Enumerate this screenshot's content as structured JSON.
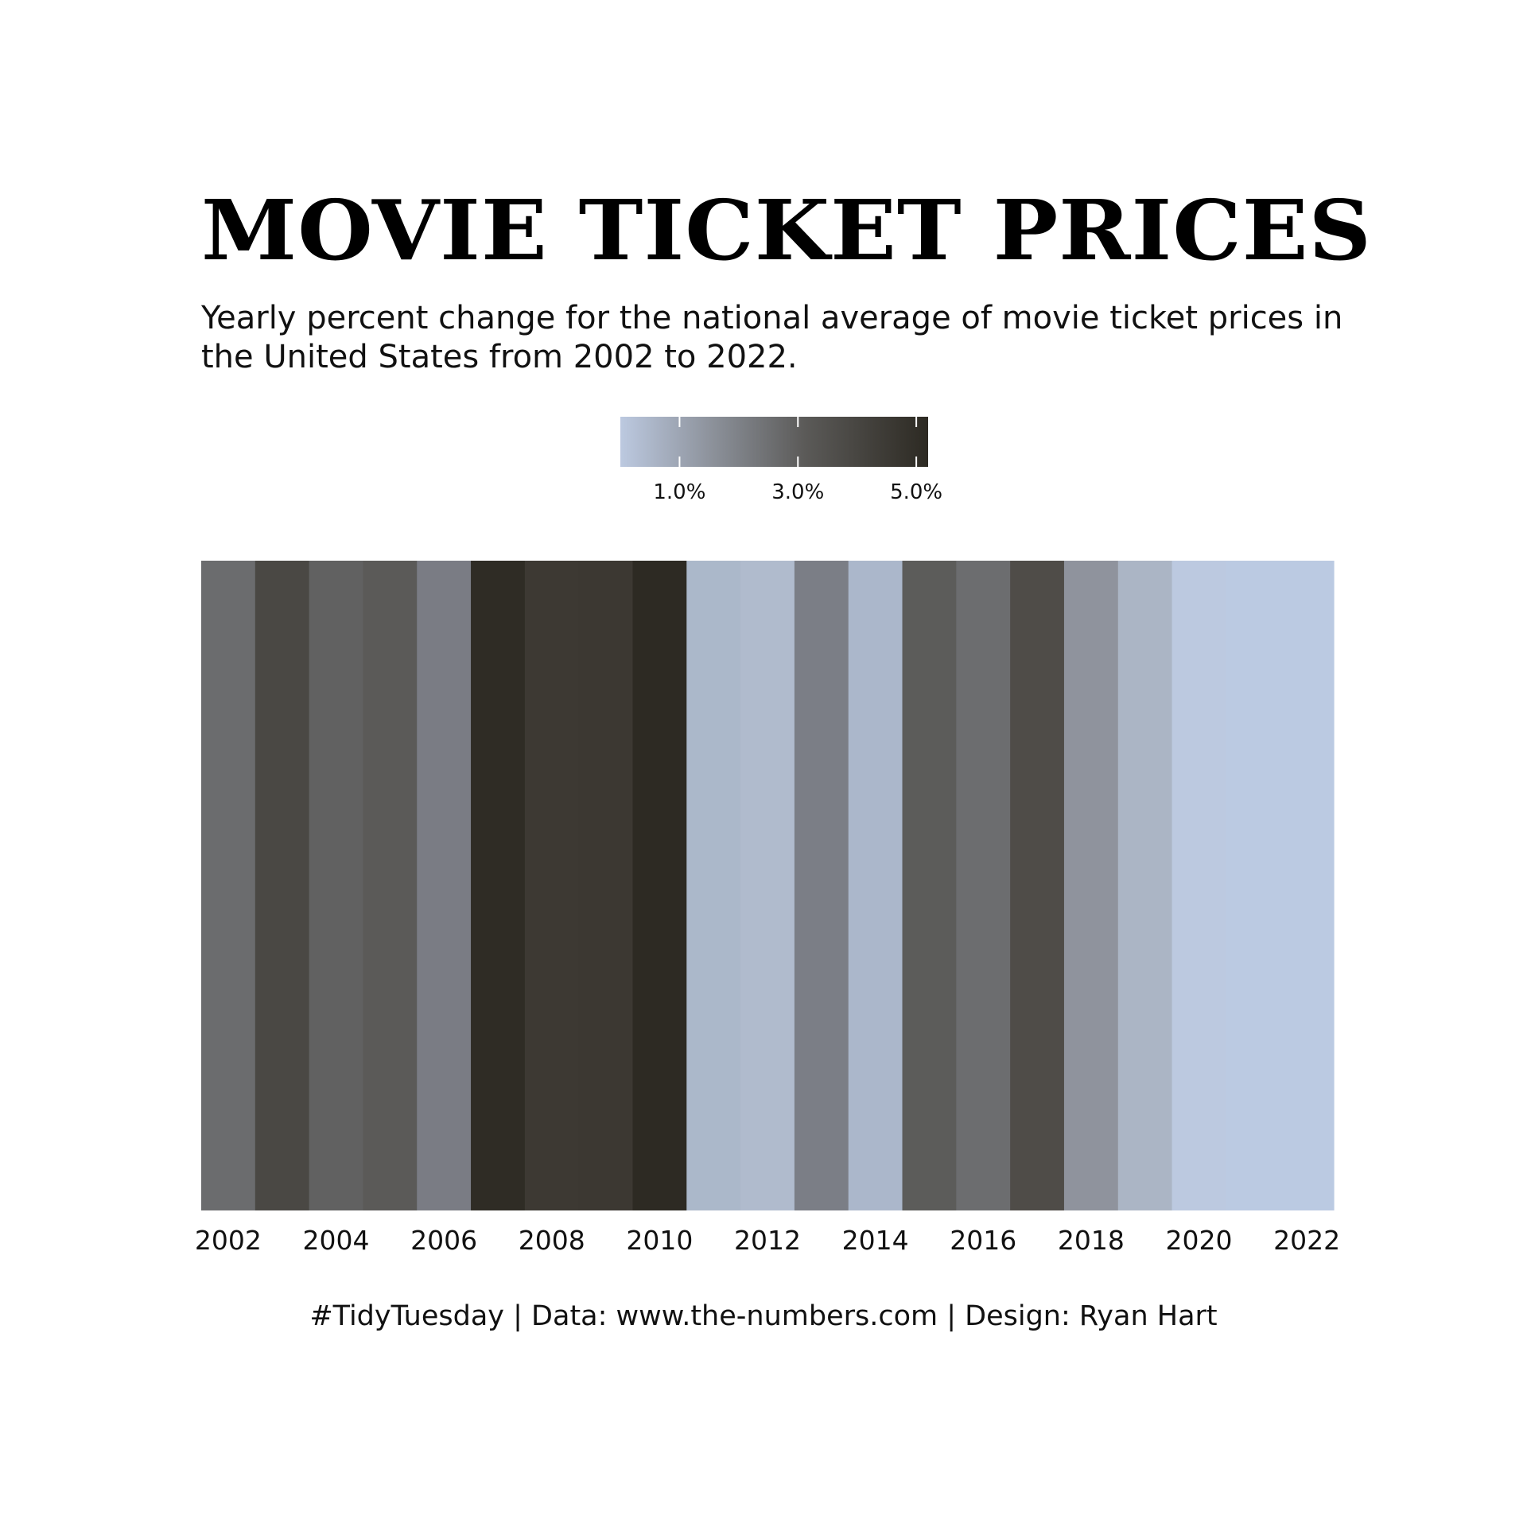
{
  "chart_data": {
    "type": "heatmap",
    "title": "MOVIE TICKET PRICES",
    "subtitle": "Yearly percent change for the national average of movie ticket prices in the United States from 2002 to 2022.",
    "caption": "#TidyTuesday | Data: www.the-numbers.com | Design: Ryan Hart",
    "x": [
      2002,
      2003,
      2004,
      2005,
      2006,
      2007,
      2008,
      2009,
      2010,
      2011,
      2012,
      2013,
      2014,
      2015,
      2016,
      2017,
      2018,
      2019,
      2020,
      2021,
      2022
    ],
    "values": [
      2.6,
      4.1,
      3.0,
      3.4,
      2.0,
      5.1,
      4.4,
      4.4,
      5.2,
      0.6,
      0.4,
      1.9,
      0.6,
      3.4,
      2.5,
      3.9,
      1.4,
      0.6,
      0.0,
      0.0,
      0.0
    ],
    "colors": [
      "#6b6c6e",
      "#4a4844",
      "#616161",
      "#5b5a58",
      "#7a7c84",
      "#2f2c25",
      "#3d3933",
      "#3c3832",
      "#2d2a23",
      "#abb8ca",
      "#b0bbcd",
      "#7b7e86",
      "#abb7cb",
      "#5c5c5a",
      "#6c6d6f",
      "#4f4c48",
      "#8f939d",
      "#abb5c5",
      "#bcc9e0",
      "#bbcae2",
      "#bbcae2"
    ],
    "xticks": [
      "2002",
      "2004",
      "2006",
      "2008",
      "2010",
      "2012",
      "2014",
      "2016",
      "2018",
      "2020",
      "2022"
    ],
    "legend": {
      "position": "top-center",
      "min": 0.0,
      "max": 5.2,
      "ticks": [
        1.0,
        3.0,
        5.0
      ],
      "tick_labels": [
        "1.0%",
        "3.0%",
        "5.0%"
      ],
      "color_low": "#bcc9e0",
      "color_high": "#2d2a23"
    },
    "grid": false
  }
}
